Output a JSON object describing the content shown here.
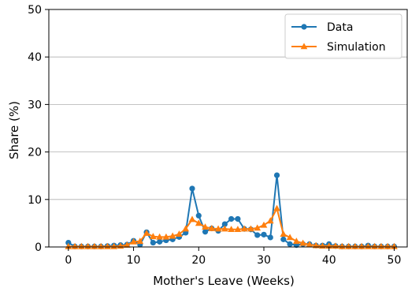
{
  "chart_data": {
    "type": "line",
    "xlabel": "Mother's Leave (Weeks)",
    "ylabel": "Share (%)",
    "xlim": [
      -3,
      52
    ],
    "ylim": [
      0,
      50
    ],
    "xticks": [
      0,
      10,
      20,
      30,
      40,
      50
    ],
    "yticks": [
      0,
      10,
      20,
      30,
      40,
      50
    ],
    "grid": "horizontal",
    "legend_position": "top-right",
    "series": [
      {
        "name": "Data",
        "color": "#1f77b4",
        "marker": "circle",
        "x": [
          0,
          1,
          2,
          3,
          4,
          5,
          6,
          7,
          8,
          9,
          10,
          11,
          12,
          13,
          14,
          15,
          16,
          17,
          18,
          19,
          20,
          21,
          22,
          23,
          24,
          25,
          26,
          27,
          28,
          29,
          30,
          31,
          32,
          33,
          34,
          35,
          36,
          37,
          38,
          39,
          40,
          41,
          42,
          43,
          44,
          45,
          46,
          47,
          48,
          49,
          50
        ],
        "values": [
          0.9,
          0.1,
          0.1,
          0.1,
          0.1,
          0.1,
          0.2,
          0.3,
          0.4,
          0.5,
          1.3,
          0.5,
          3.1,
          0.9,
          1.1,
          1.4,
          1.6,
          2.1,
          3.0,
          12.3,
          6.6,
          3.2,
          3.9,
          3.4,
          4.8,
          5.9,
          5.9,
          3.8,
          3.7,
          2.5,
          2.6,
          2.0,
          15.1,
          1.6,
          0.6,
          0.4,
          0.6,
          0.6,
          0.3,
          0.3,
          0.6,
          0.2,
          0.1,
          0.1,
          0.1,
          0.1,
          0.3,
          0.1,
          0.1,
          0.1,
          0.1
        ]
      },
      {
        "name": "Simulation",
        "color": "#ff7f0e",
        "marker": "triangle",
        "x": [
          0,
          1,
          2,
          3,
          4,
          5,
          6,
          7,
          8,
          9,
          10,
          11,
          12,
          13,
          14,
          15,
          16,
          17,
          18,
          19,
          20,
          21,
          22,
          23,
          24,
          25,
          26,
          27,
          28,
          29,
          30,
          31,
          32,
          33,
          34,
          35,
          36,
          37,
          38,
          39,
          40,
          41,
          42,
          43,
          44,
          45,
          46,
          47,
          48,
          49,
          50
        ],
        "values": [
          0.1,
          0.1,
          0.1,
          0.1,
          0.1,
          0.1,
          0.1,
          0.1,
          0.2,
          0.4,
          1.1,
          1.2,
          2.9,
          2.2,
          2.1,
          2.1,
          2.3,
          2.7,
          3.8,
          5.8,
          5.0,
          4.2,
          3.9,
          3.8,
          3.8,
          3.7,
          3.7,
          3.8,
          3.8,
          4.0,
          4.6,
          5.5,
          8.1,
          2.7,
          2.0,
          1.2,
          0.8,
          0.5,
          0.3,
          0.2,
          0.2,
          0.2,
          0.1,
          0.1,
          0.1,
          0.1,
          0.1,
          0.1,
          0.1,
          0.1,
          0.1
        ]
      }
    ]
  }
}
